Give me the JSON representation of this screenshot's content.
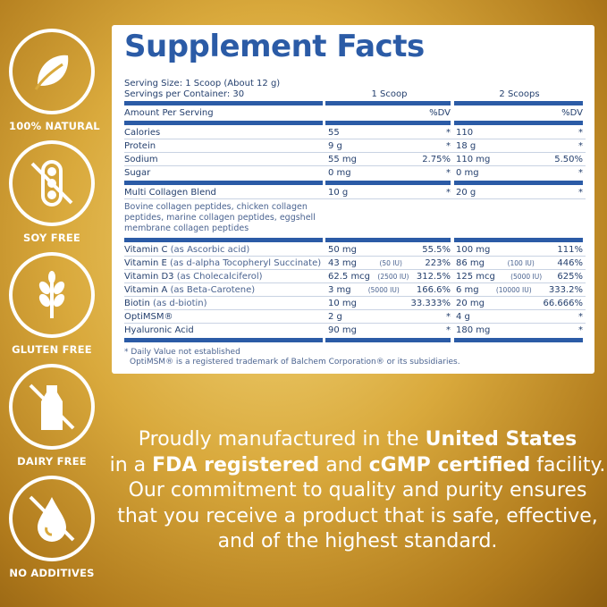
{
  "badges": [
    {
      "label": "100% NATURAL",
      "icon": "leaf-icon"
    },
    {
      "label": "SOY FREE",
      "icon": "soy-free-icon"
    },
    {
      "label": "GLUTEN FREE",
      "icon": "wheat-icon"
    },
    {
      "label": "DAIRY FREE",
      "icon": "milk-bottle-free-icon"
    },
    {
      "label": "NO ADDITIVES",
      "icon": "drop-free-icon"
    }
  ],
  "facts": {
    "title": "Supplement Facts",
    "serving_size": "Serving Size: 1 Scoop (About 12 g)",
    "servings_per_container": "Servings per Container: 30",
    "col1": "1 Scoop",
    "col2": "2 Scoops",
    "amount_per_serving": "Amount Per Serving",
    "dv": "%DV",
    "macros": [
      {
        "name": "Calories",
        "v1": "55",
        "d1": "*",
        "v2": "110",
        "d2": "*"
      },
      {
        "name": "Protein",
        "v1": "9 g",
        "d1": "*",
        "v2": "18 g",
        "d2": "*"
      },
      {
        "name": "Sodium",
        "v1": "55 mg",
        "d1": "2.75%",
        "v2": "110 mg",
        "d2": "5.50%"
      },
      {
        "name": "Sugar",
        "v1": "0 mg",
        "d1": "*",
        "v2": "0 mg",
        "d2": "*"
      }
    ],
    "blend": {
      "name": "Multi Collagen Blend",
      "v1": "10 g",
      "d1": "*",
      "v2": "20 g",
      "d2": "*",
      "description": "Bovine collagen peptides, chicken collagen peptides, marine collagen peptides, eggshell membrane collagen peptides"
    },
    "vitamins": [
      {
        "name": "Vitamin C",
        "sub": "(as Ascorbic acid)",
        "v1": "50  mg",
        "iu1": "",
        "d1": "55.5%",
        "v2": "100 mg",
        "iu2": "",
        "d2": "111%"
      },
      {
        "name": "Vitamin E",
        "sub": "(as d-alpha Tocopheryl Succinate)",
        "v1": "43  mg",
        "iu1": "(50 IU)",
        "d1": "223%",
        "v2": "86 mg",
        "iu2": "(100 IU)",
        "d2": "446%"
      },
      {
        "name": "Vitamin D3",
        "sub": "(as Cholecalciferol)",
        "v1": "62.5 mcg",
        "iu1": "(2500 IU)",
        "d1": "312.5%",
        "v2": "125 mcg",
        "iu2": "(5000 IU)",
        "d2": "625%"
      },
      {
        "name": "Vitamin A",
        "sub": "(as Beta-Carotene)",
        "v1": "3 mg",
        "iu1": "(5000 IU)",
        "d1": "166.6%",
        "v2": "6 mg",
        "iu2": "(10000 IU)",
        "d2": "333.2%"
      },
      {
        "name": "Biotin",
        "sub": "(as d-biotin)",
        "v1": "10 mg",
        "iu1": "",
        "d1": "33.333%",
        "v2": "20 mg",
        "iu2": "",
        "d2": "66.666%"
      },
      {
        "name": "OptiMSM®",
        "sub": "",
        "v1": "2 g",
        "iu1": "",
        "d1": "*",
        "v2": "4 g",
        "iu2": "",
        "d2": "*"
      },
      {
        "name": "Hyaluronic Acid",
        "sub": "",
        "v1": "90  mg",
        "iu1": "",
        "d1": "*",
        "v2": "180 mg",
        "iu2": "",
        "d2": "*"
      }
    ],
    "footnote1": "* Daily Value not established",
    "footnote2": "OptiMSM® is a registered trademark of Balchem Corporation® or its subsidiaries."
  },
  "message": {
    "l1a": "Proudly manufactured in the ",
    "l1b": "United States",
    "l2a": "in a ",
    "l2b": "FDA registered",
    "l2c": " and ",
    "l2d": "cGMP certified",
    "l2e": " facility.",
    "l3": "Our commitment to quality and purity ensures",
    "l4": "that you receive a product that is safe, effective,",
    "l5": "and of the highest standard."
  },
  "colors": {
    "brand_blue": "#2b5ba6",
    "gold": "#d9a93c"
  }
}
